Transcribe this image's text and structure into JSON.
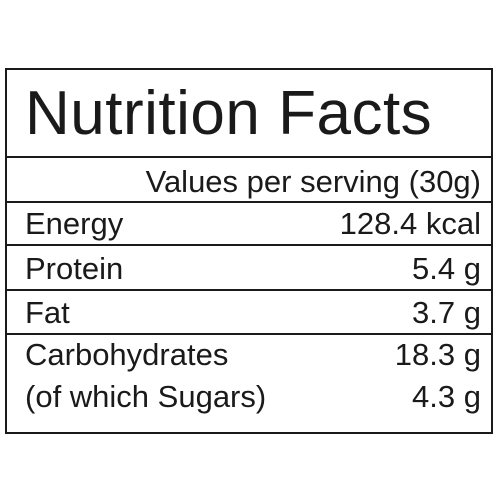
{
  "header": {
    "title": "Nutrition Facts",
    "serving": "Values per serving (30g)"
  },
  "table": {
    "rows": [
      [
        "Energy",
        "128.4 kcal"
      ],
      [
        "Protein",
        "5.4 g"
      ],
      [
        "Fat",
        "3.7 g"
      ],
      [
        "Carbohydrates",
        "18.3 g"
      ],
      [
        "(of which Sugars)",
        "4.3 g"
      ]
    ]
  }
}
